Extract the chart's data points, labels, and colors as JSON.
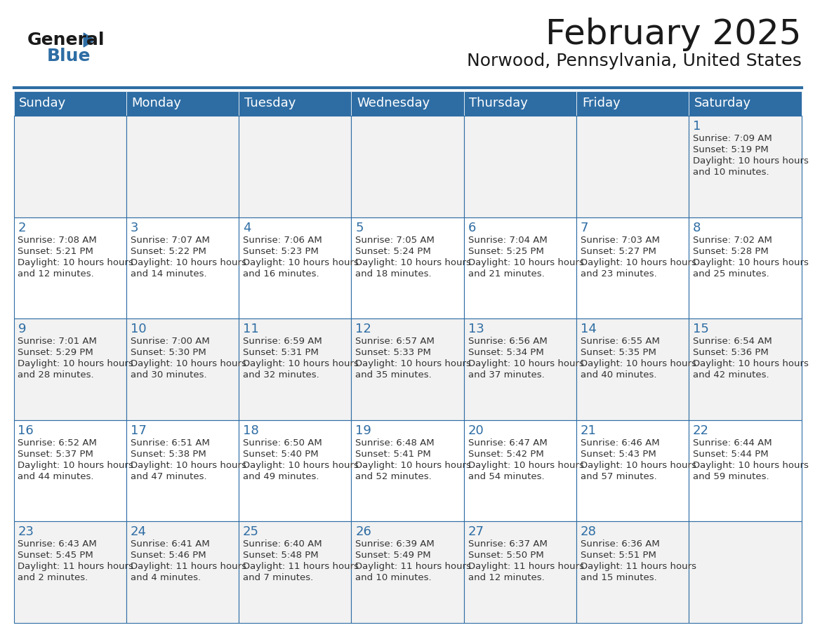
{
  "title": "February 2025",
  "subtitle": "Norwood, Pennsylvania, United States",
  "header_bg": "#2E6DA4",
  "header_text_color": "#FFFFFF",
  "cell_bg_odd": "#F2F2F2",
  "cell_bg_even": "#FFFFFF",
  "border_color": "#2E6DA4",
  "day_number_color": "#2E6DA4",
  "cell_text_color": "#333333",
  "days_of_week": [
    "Sunday",
    "Monday",
    "Tuesday",
    "Wednesday",
    "Thursday",
    "Friday",
    "Saturday"
  ],
  "weeks": [
    [
      null,
      null,
      null,
      null,
      null,
      null,
      1
    ],
    [
      2,
      3,
      4,
      5,
      6,
      7,
      8
    ],
    [
      9,
      10,
      11,
      12,
      13,
      14,
      15
    ],
    [
      16,
      17,
      18,
      19,
      20,
      21,
      22
    ],
    [
      23,
      24,
      25,
      26,
      27,
      28,
      null
    ]
  ],
  "cell_data": {
    "1": {
      "sunrise": "7:09 AM",
      "sunset": "5:19 PM",
      "daylight": "10 hours and 10 minutes."
    },
    "2": {
      "sunrise": "7:08 AM",
      "sunset": "5:21 PM",
      "daylight": "10 hours and 12 minutes."
    },
    "3": {
      "sunrise": "7:07 AM",
      "sunset": "5:22 PM",
      "daylight": "10 hours and 14 minutes."
    },
    "4": {
      "sunrise": "7:06 AM",
      "sunset": "5:23 PM",
      "daylight": "10 hours and 16 minutes."
    },
    "5": {
      "sunrise": "7:05 AM",
      "sunset": "5:24 PM",
      "daylight": "10 hours and 18 minutes."
    },
    "6": {
      "sunrise": "7:04 AM",
      "sunset": "5:25 PM",
      "daylight": "10 hours and 21 minutes."
    },
    "7": {
      "sunrise": "7:03 AM",
      "sunset": "5:27 PM",
      "daylight": "10 hours and 23 minutes."
    },
    "8": {
      "sunrise": "7:02 AM",
      "sunset": "5:28 PM",
      "daylight": "10 hours and 25 minutes."
    },
    "9": {
      "sunrise": "7:01 AM",
      "sunset": "5:29 PM",
      "daylight": "10 hours and 28 minutes."
    },
    "10": {
      "sunrise": "7:00 AM",
      "sunset": "5:30 PM",
      "daylight": "10 hours and 30 minutes."
    },
    "11": {
      "sunrise": "6:59 AM",
      "sunset": "5:31 PM",
      "daylight": "10 hours and 32 minutes."
    },
    "12": {
      "sunrise": "6:57 AM",
      "sunset": "5:33 PM",
      "daylight": "10 hours and 35 minutes."
    },
    "13": {
      "sunrise": "6:56 AM",
      "sunset": "5:34 PM",
      "daylight": "10 hours and 37 minutes."
    },
    "14": {
      "sunrise": "6:55 AM",
      "sunset": "5:35 PM",
      "daylight": "10 hours and 40 minutes."
    },
    "15": {
      "sunrise": "6:54 AM",
      "sunset": "5:36 PM",
      "daylight": "10 hours and 42 minutes."
    },
    "16": {
      "sunrise": "6:52 AM",
      "sunset": "5:37 PM",
      "daylight": "10 hours and 44 minutes."
    },
    "17": {
      "sunrise": "6:51 AM",
      "sunset": "5:38 PM",
      "daylight": "10 hours and 47 minutes."
    },
    "18": {
      "sunrise": "6:50 AM",
      "sunset": "5:40 PM",
      "daylight": "10 hours and 49 minutes."
    },
    "19": {
      "sunrise": "6:48 AM",
      "sunset": "5:41 PM",
      "daylight": "10 hours and 52 minutes."
    },
    "20": {
      "sunrise": "6:47 AM",
      "sunset": "5:42 PM",
      "daylight": "10 hours and 54 minutes."
    },
    "21": {
      "sunrise": "6:46 AM",
      "sunset": "5:43 PM",
      "daylight": "10 hours and 57 minutes."
    },
    "22": {
      "sunrise": "6:44 AM",
      "sunset": "5:44 PM",
      "daylight": "10 hours and 59 minutes."
    },
    "23": {
      "sunrise": "6:43 AM",
      "sunset": "5:45 PM",
      "daylight": "11 hours and 2 minutes."
    },
    "24": {
      "sunrise": "6:41 AM",
      "sunset": "5:46 PM",
      "daylight": "11 hours and 4 minutes."
    },
    "25": {
      "sunrise": "6:40 AM",
      "sunset": "5:48 PM",
      "daylight": "11 hours and 7 minutes."
    },
    "26": {
      "sunrise": "6:39 AM",
      "sunset": "5:49 PM",
      "daylight": "11 hours and 10 minutes."
    },
    "27": {
      "sunrise": "6:37 AM",
      "sunset": "5:50 PM",
      "daylight": "11 hours and 12 minutes."
    },
    "28": {
      "sunrise": "6:36 AM",
      "sunset": "5:51 PM",
      "daylight": "11 hours and 15 minutes."
    }
  },
  "logo_text_general": "General",
  "logo_text_blue": "Blue",
  "logo_triangle_color": "#2E6DA4"
}
